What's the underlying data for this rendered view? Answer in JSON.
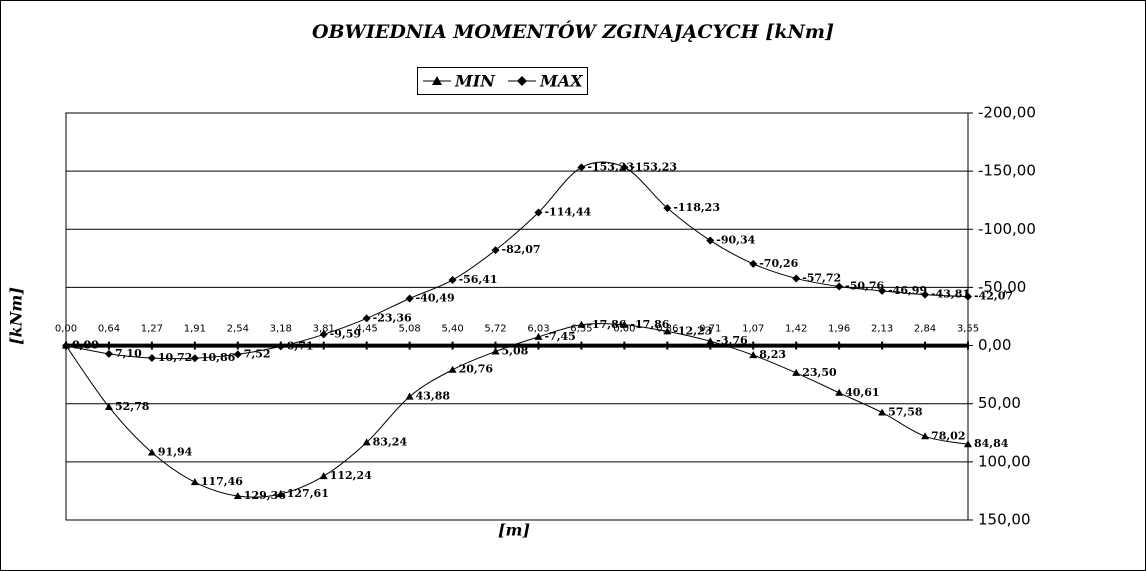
{
  "chart_data": {
    "type": "line",
    "title": "OBWIEDNIA MOMENTÓW ZGINAJĄCYCH [kNm]",
    "x_label": "[m]",
    "y_label": "[kNm]",
    "categories": [
      "0,00",
      "0,64",
      "1,27",
      "1,91",
      "2,54",
      "3,18",
      "3,81",
      "4,45",
      "5,08",
      "5,40",
      "5,72",
      "6,03",
      "6,35",
      "0,00",
      "0,36",
      "0,71",
      "1,07",
      "1,42",
      "1,96",
      "2,13",
      "2,84",
      "3,55"
    ],
    "series": [
      {
        "name": "MIN",
        "color": "#000000",
        "marker": "triangle",
        "values": [
          0,
          52.78,
          91.94,
          117.46,
          129.36,
          127.61,
          112.24,
          83.24,
          43.88,
          20.76,
          5.08,
          -7.45,
          -17.86,
          -17.86,
          -12.23,
          -3.76,
          8.23,
          23.5,
          40.61,
          57.58,
          78.02,
          84.84
        ],
        "value_labels": [
          "0,00",
          "52,78",
          "91,94",
          "117,46",
          "129,36",
          "127,61",
          "112,24",
          "83,24",
          "43,88",
          "20,76",
          "5,08",
          "-7,45",
          "-17,86",
          "-17,86",
          "-12,23",
          "-3,76",
          "8,23",
          "23,50",
          "40,61",
          "57,58",
          "78,02",
          "84,84"
        ]
      },
      {
        "name": "MAX",
        "color": "#000000",
        "marker": "diamond",
        "values": [
          0,
          7.1,
          10.72,
          10.86,
          7.52,
          0.71,
          -9.59,
          -23.36,
          -40.49,
          -56.41,
          -82.07,
          -114.44,
          -153.23,
          -153.23,
          -118.23,
          -90.34,
          -70.26,
          -57.72,
          -50.76,
          -46.99,
          -43.81,
          -42.07
        ],
        "value_labels": [
          "0,00",
          "7,10",
          "10,72",
          "10,86",
          "7,52",
          "0,71",
          "-9,59",
          "-23,36",
          "-40,49",
          "-56,41",
          "-82,07",
          "-114,44",
          "-153,23",
          "-153,23",
          "-118,23",
          "-90,34",
          "-70,26",
          "-57,72",
          "-50,76",
          "-46,99",
          "-43,81",
          "-42,07"
        ]
      }
    ],
    "ylim": [
      -200,
      150
    ],
    "y_inverted": true,
    "yticks": [
      {
        "value": -200,
        "label": "-200,00"
      },
      {
        "value": -150,
        "label": "-150,00"
      },
      {
        "value": -100,
        "label": "-100,00"
      },
      {
        "value": -50,
        "label": "-50,00"
      },
      {
        "value": 0,
        "label": "0,00"
      },
      {
        "value": 50,
        "label": "50,00"
      },
      {
        "value": 100,
        "label": "100,00"
      },
      {
        "value": 150,
        "label": "150,00"
      }
    ],
    "grid": true,
    "legend": "top"
  }
}
